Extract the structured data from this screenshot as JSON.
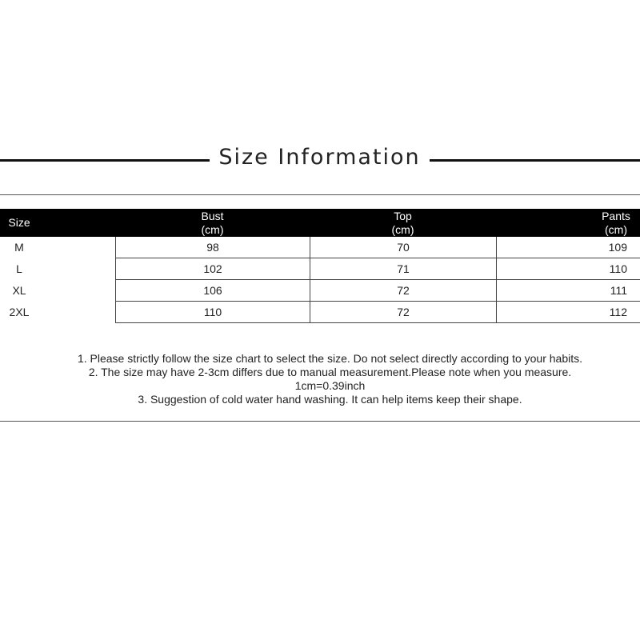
{
  "title": "Size Information",
  "table": {
    "headers": [
      {
        "name": "Size",
        "unit": ""
      },
      {
        "name": "Bust",
        "unit": "(cm)"
      },
      {
        "name": "Top",
        "unit": "(cm)"
      },
      {
        "name": "Pants",
        "unit": "(cm)"
      }
    ],
    "rows": [
      [
        "M",
        "98",
        "70",
        "109"
      ],
      [
        "L",
        "102",
        "71",
        "110"
      ],
      [
        "XL",
        "106",
        "72",
        "111"
      ],
      [
        "2XL",
        "110",
        "72",
        "112"
      ]
    ]
  },
  "notes": [
    "1. Please strictly follow the size chart  to select the size. Do not select directly according to your habits.",
    "2. The size may have 2-3cm differs due to manual measurement.Please note when you measure.",
    "1cm=0.39inch",
    "3. Suggestion of cold water hand washing. It can help items keep their shape."
  ]
}
